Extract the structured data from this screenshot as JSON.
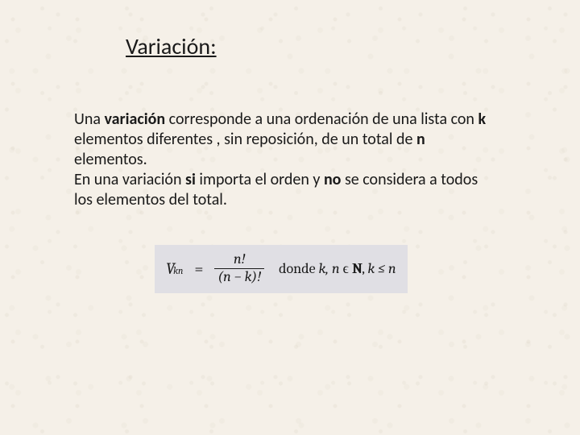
{
  "colors": {
    "background": "#f5f0e8",
    "text": "#1a1a1a",
    "formula_bg": "#e0dfe4"
  },
  "typography": {
    "body_font": "Calibri, Arial, sans-serif",
    "math_font": "Cambria, Times New Roman, serif",
    "title_fontsize": 28,
    "body_fontsize": 20,
    "formula_fontsize": 20
  },
  "title": "Variación:",
  "paragraph": {
    "p1a": "Una ",
    "p1b": "variación",
    "p1c": " corresponde a una ordenación de una lista con ",
    "p1d": "k",
    "p1e": "  elementos  diferentes , sin reposición, de un total de ",
    "p1f": "n",
    "p1g": " elementos.",
    "p2a": "En una  variación ",
    "p2b": "si",
    "p2c": " importa el orden y  ",
    "p2d": "no",
    "p2e": " se considera a todos los elementos del total."
  },
  "formula": {
    "V": "V",
    "sup": "n",
    "sub": "k",
    "eq": "=",
    "num": "n!",
    "den": "(n − k)!",
    "donde": "  donde ",
    "kn": "k, n ",
    "in": "ϵ",
    "Nset": "N",
    "comma": ", ",
    "klen": "k ≤ n"
  }
}
